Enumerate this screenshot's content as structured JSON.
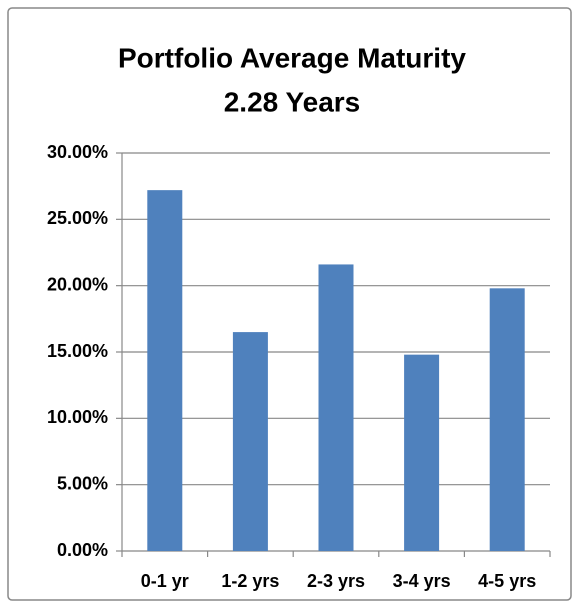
{
  "chart_data": {
    "type": "bar",
    "title": "Portfolio Average Maturity",
    "subtitle": "2.28 Years",
    "categories": [
      "0-1 yr",
      "1-2 yrs",
      "2-3 yrs",
      "3-4 yrs",
      "4-5 yrs"
    ],
    "values": [
      27.2,
      16.5,
      21.6,
      14.8,
      19.8
    ],
    "color": "#4f81bd",
    "ylim": [
      0,
      30
    ],
    "yticks": [
      {
        "value": 0,
        "label": "0.00%"
      },
      {
        "value": 5,
        "label": "5.00%"
      },
      {
        "value": 10,
        "label": "10.00%"
      },
      {
        "value": 15,
        "label": "15.00%"
      },
      {
        "value": 20,
        "label": "20.00%"
      },
      {
        "value": 25,
        "label": "25.00%"
      },
      {
        "value": 30,
        "label": "30.00%"
      }
    ],
    "grid": true
  }
}
